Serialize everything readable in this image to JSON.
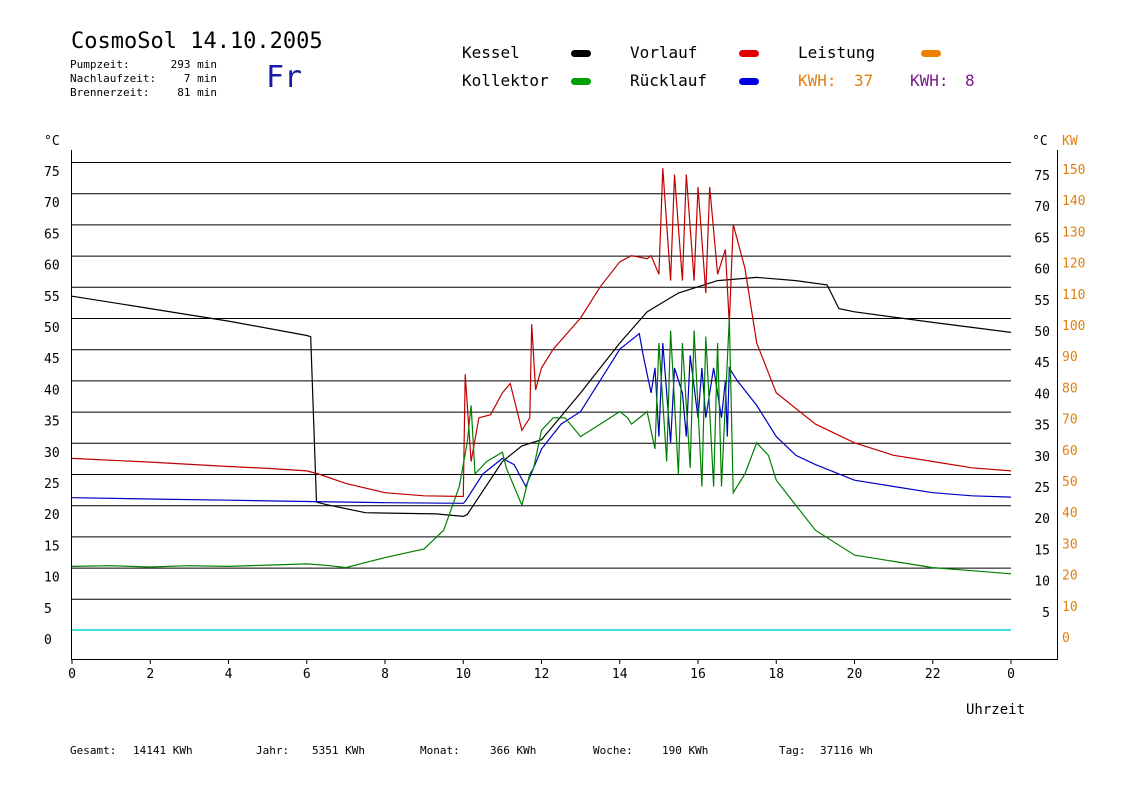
{
  "header": {
    "title": "CosmoSol 14.10.2005",
    "pump_label": "Pumpzeit:",
    "pump_value": "293 min",
    "after_label": "Nachlaufzeit:",
    "after_value": "7 min",
    "burner_label": "Brennerzeit:",
    "burner_value": "81 min",
    "day": "Fr"
  },
  "legend": {
    "kessel": {
      "label": "Kessel",
      "color": "#000000"
    },
    "kollektor": {
      "label": "Kollektor",
      "color": "#00a000"
    },
    "vorlauf": {
      "label": "Vorlauf",
      "color": "#e00000"
    },
    "ruecklauf": {
      "label": "Rücklauf",
      "color": "#0000e0"
    },
    "leistung": {
      "label": "Leistung",
      "color": "#f08000"
    },
    "kwh1": {
      "label": "KWH:",
      "value": "37",
      "color": "#e08010"
    },
    "kwh2": {
      "label": "KWH:",
      "value": "8",
      "color": "#7a1a8a"
    }
  },
  "footer": {
    "gesamt_label": "Gesamt:",
    "gesamt_value": "14141 KWh",
    "jahr_label": "Jahr:",
    "jahr_value": "5351 KWh",
    "monat_label": "Monat:",
    "monat_value": "366 KWh",
    "woche_label": "Woche:",
    "woche_value": "190 KWh",
    "tag_label": "Tag:",
    "tag_value": "37116 Wh"
  },
  "chart_data": {
    "type": "line",
    "xlabel": "Uhrzeit",
    "ylabel_left": "°C",
    "ylabel_right_1": "°C",
    "ylabel_right_2": "KW",
    "x_ticks": [
      "0",
      "2",
      "4",
      "6",
      "8",
      "10",
      "12",
      "14",
      "16",
      "18",
      "20",
      "22",
      "0"
    ],
    "y_ticks_left": [
      "0",
      "5",
      "10",
      "15",
      "20",
      "25",
      "30",
      "35",
      "40",
      "45",
      "50",
      "55",
      "60",
      "65",
      "70",
      "75"
    ],
    "y_ticks_right_c": [
      "5",
      "10",
      "15",
      "20",
      "25",
      "30",
      "35",
      "40",
      "45",
      "50",
      "55",
      "60",
      "65",
      "70",
      "75"
    ],
    "y_ticks_right_kw": [
      "0",
      "10",
      "20",
      "30",
      "40",
      "50",
      "60",
      "70",
      "80",
      "90",
      "100",
      "110",
      "120",
      "130",
      "140",
      "150"
    ],
    "xlim": [
      0,
      24
    ],
    "ylim": [
      0,
      75
    ],
    "grid": "horizontal",
    "series": [
      {
        "name": "Kessel",
        "color": "#000000",
        "points": [
          [
            0,
            53.5
          ],
          [
            2,
            51.5
          ],
          [
            4,
            49.5
          ],
          [
            6,
            47.2
          ],
          [
            6.1,
            47
          ],
          [
            6.25,
            20.5
          ],
          [
            6.5,
            20.1
          ],
          [
            7.5,
            18.8
          ],
          [
            9.3,
            18.6
          ],
          [
            10,
            18.2
          ],
          [
            10.1,
            18.5
          ],
          [
            11,
            27
          ],
          [
            11.5,
            29.5
          ],
          [
            12,
            30.5
          ],
          [
            13,
            38
          ],
          [
            14,
            46
          ],
          [
            14.7,
            51
          ],
          [
            15.5,
            54
          ],
          [
            16,
            55
          ],
          [
            16.5,
            56
          ],
          [
            17.5,
            56.5
          ],
          [
            18.5,
            56
          ],
          [
            19.3,
            55.3
          ],
          [
            19.6,
            51.5
          ],
          [
            20,
            51
          ],
          [
            22,
            49.3
          ],
          [
            24,
            47.7
          ]
        ]
      },
      {
        "name": "Vorlauf",
        "color": "#c00000",
        "points": [
          [
            0,
            27.5
          ],
          [
            2,
            26.9
          ],
          [
            4,
            26.2
          ],
          [
            5,
            25.9
          ],
          [
            6,
            25.5
          ],
          [
            6.3,
            25
          ],
          [
            7,
            23.5
          ],
          [
            8,
            22
          ],
          [
            9,
            21.5
          ],
          [
            10,
            21.4
          ],
          [
            10.05,
            41
          ],
          [
            10.2,
            27
          ],
          [
            10.4,
            34
          ],
          [
            10.7,
            34.5
          ],
          [
            11,
            38
          ],
          [
            11.2,
            39.5
          ],
          [
            11.5,
            32
          ],
          [
            11.7,
            34
          ],
          [
            11.75,
            49
          ],
          [
            11.85,
            38.5
          ],
          [
            12,
            42
          ],
          [
            12.3,
            45
          ],
          [
            13,
            50
          ],
          [
            13.5,
            55
          ],
          [
            14,
            59
          ],
          [
            14.3,
            60
          ],
          [
            14.7,
            59.5
          ],
          [
            14.8,
            60
          ],
          [
            15,
            57
          ],
          [
            15.1,
            74
          ],
          [
            15.3,
            56
          ],
          [
            15.4,
            73
          ],
          [
            15.6,
            56
          ],
          [
            15.7,
            73
          ],
          [
            15.9,
            56
          ],
          [
            16.0,
            71
          ],
          [
            16.2,
            54
          ],
          [
            16.3,
            71
          ],
          [
            16.5,
            57
          ],
          [
            16.7,
            61
          ],
          [
            16.8,
            49
          ],
          [
            16.9,
            65
          ],
          [
            17.2,
            58
          ],
          [
            17.5,
            46
          ],
          [
            18,
            38
          ],
          [
            19,
            33
          ],
          [
            20,
            30
          ],
          [
            21,
            28
          ],
          [
            22,
            27
          ],
          [
            23,
            26
          ],
          [
            24,
            25.5
          ]
        ]
      },
      {
        "name": "Rücklauf",
        "color": "#0000c0",
        "points": [
          [
            0,
            21.2
          ],
          [
            2,
            21
          ],
          [
            4,
            20.8
          ],
          [
            6,
            20.6
          ],
          [
            8,
            20.4
          ],
          [
            10,
            20.3
          ],
          [
            10.05,
            20.6
          ],
          [
            10.5,
            25
          ],
          [
            11,
            27.5
          ],
          [
            11.3,
            26.5
          ],
          [
            11.6,
            23
          ],
          [
            12,
            29
          ],
          [
            12.5,
            33
          ],
          [
            13,
            35
          ],
          [
            13.5,
            40
          ],
          [
            14,
            45
          ],
          [
            14.5,
            47.5
          ],
          [
            14.6,
            44
          ],
          [
            14.8,
            38
          ],
          [
            14.9,
            42
          ],
          [
            15,
            31
          ],
          [
            15.1,
            46
          ],
          [
            15.3,
            30
          ],
          [
            15.4,
            42
          ],
          [
            15.6,
            38
          ],
          [
            15.7,
            31
          ],
          [
            15.8,
            44
          ],
          [
            16.0,
            34
          ],
          [
            16.1,
            42
          ],
          [
            16.2,
            34
          ],
          [
            16.4,
            42
          ],
          [
            16.6,
            34
          ],
          [
            16.7,
            40
          ],
          [
            16.75,
            31
          ],
          [
            16.8,
            42
          ],
          [
            17,
            40
          ],
          [
            17.5,
            36
          ],
          [
            18,
            31
          ],
          [
            18.5,
            28
          ],
          [
            19,
            26.5
          ],
          [
            20,
            24
          ],
          [
            21,
            23
          ],
          [
            22,
            22
          ],
          [
            23,
            21.5
          ],
          [
            24,
            21.3
          ]
        ]
      },
      {
        "name": "Kollektor",
        "color": "#008000",
        "points": [
          [
            0,
            10.2
          ],
          [
            1,
            10.3
          ],
          [
            2,
            10.1
          ],
          [
            3,
            10.3
          ],
          [
            4,
            10.2
          ],
          [
            5,
            10.4
          ],
          [
            6,
            10.6
          ],
          [
            6.6,
            10.3
          ],
          [
            7,
            10
          ],
          [
            7.5,
            10.8
          ],
          [
            8,
            11.6
          ],
          [
            9,
            13
          ],
          [
            9.5,
            16
          ],
          [
            9.9,
            23
          ],
          [
            10.1,
            30
          ],
          [
            10.2,
            36
          ],
          [
            10.3,
            25
          ],
          [
            10.6,
            27
          ],
          [
            11,
            28.5
          ],
          [
            11.1,
            26
          ],
          [
            11.3,
            23
          ],
          [
            11.5,
            20
          ],
          [
            11.7,
            25
          ],
          [
            11.8,
            26
          ],
          [
            12,
            32
          ],
          [
            12.3,
            34
          ],
          [
            12.6,
            34
          ],
          [
            13,
            31
          ],
          [
            13.5,
            33
          ],
          [
            14,
            35
          ],
          [
            14.2,
            34
          ],
          [
            14.3,
            33
          ],
          [
            14.7,
            35
          ],
          [
            14.9,
            29
          ],
          [
            15,
            46
          ],
          [
            15.2,
            27
          ],
          [
            15.3,
            48
          ],
          [
            15.5,
            25
          ],
          [
            15.6,
            46
          ],
          [
            15.8,
            26
          ],
          [
            15.9,
            48
          ],
          [
            16.1,
            23
          ],
          [
            16.2,
            47
          ],
          [
            16.4,
            23
          ],
          [
            16.5,
            46
          ],
          [
            16.6,
            23
          ],
          [
            16.8,
            50
          ],
          [
            16.9,
            22
          ],
          [
            17.2,
            25
          ],
          [
            17.5,
            30
          ],
          [
            17.8,
            28
          ],
          [
            18,
            24
          ],
          [
            18.5,
            20
          ],
          [
            19,
            16
          ],
          [
            20,
            12
          ],
          [
            21,
            11
          ],
          [
            22,
            10
          ],
          [
            23,
            9.5
          ],
          [
            24,
            9
          ]
        ]
      }
    ]
  }
}
